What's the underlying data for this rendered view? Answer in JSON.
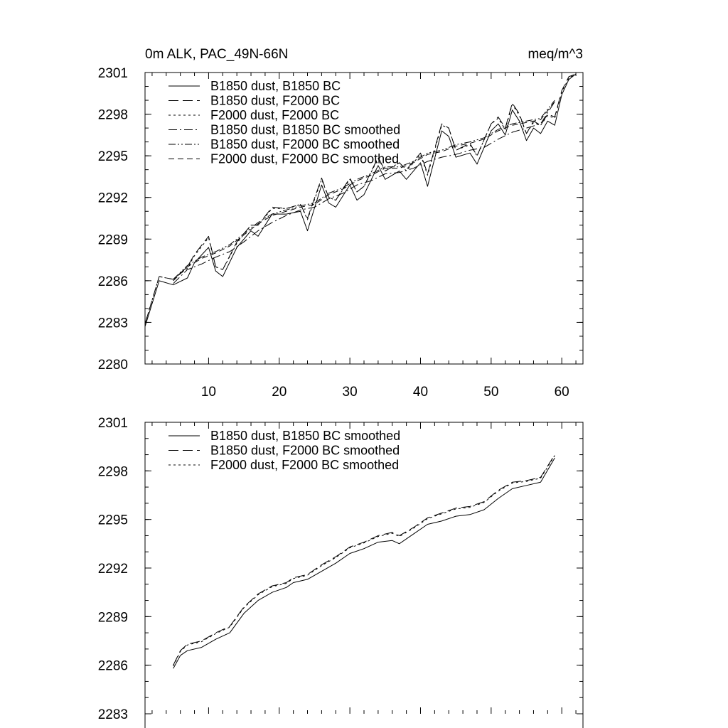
{
  "chart_data": [
    {
      "type": "line",
      "title_left": "0m ALK, PAC_49N-66N",
      "title_right": "meq/m^3",
      "xlim": [
        1,
        63
      ],
      "ylim": [
        2280,
        2301
      ],
      "xticks": [
        10,
        20,
        30,
        40,
        50,
        60
      ],
      "xtick_labels": [
        "10",
        "20",
        "30",
        "40",
        "50",
        "60"
      ],
      "yticks": [
        2280,
        2283,
        2286,
        2289,
        2292,
        2295,
        2298,
        2301
      ],
      "ytick_labels": [
        "2280",
        "2283",
        "2286",
        "2289",
        "2292",
        "2295",
        "2298",
        "2301"
      ],
      "grid": false,
      "legend_position": "top-left",
      "series": [
        {
          "name": "B1850 dust, B1850 BC",
          "dash": "solid",
          "x": [
            1,
            3,
            5,
            7,
            8,
            10,
            11,
            12,
            14,
            16,
            17,
            19,
            21,
            23,
            24,
            26,
            27,
            28,
            30,
            31,
            32,
            34,
            35,
            37,
            38,
            40,
            41,
            43,
            44,
            45,
            47,
            48,
            50,
            51,
            52,
            53,
            54,
            55,
            56,
            57,
            58,
            59,
            60,
            61,
            62
          ],
          "values": [
            2282.7,
            2286.0,
            2285.7,
            2286.2,
            2287.3,
            2288.4,
            2286.7,
            2286.3,
            2288.4,
            2289.6,
            2289.2,
            2290.8,
            2290.8,
            2291.0,
            2289.6,
            2292.9,
            2291.6,
            2291.3,
            2292.9,
            2291.8,
            2292.2,
            2294.3,
            2293.3,
            2293.9,
            2293.3,
            2294.5,
            2292.8,
            2296.8,
            2296.4,
            2294.9,
            2295.2,
            2294.4,
            2296.8,
            2297.3,
            2296.5,
            2298.3,
            2297.5,
            2296.1,
            2297.0,
            2296.6,
            2297.5,
            2297.2,
            2299.4,
            2300.5,
            2300.9
          ]
        },
        {
          "name": "B1850 dust, F2000 BC",
          "dash": "long-dash",
          "x": [
            1,
            3,
            5,
            7,
            8,
            10,
            11,
            12,
            14,
            16,
            17,
            19,
            21,
            23,
            24,
            26,
            27,
            28,
            30,
            31,
            32,
            34,
            35,
            37,
            38,
            40,
            41,
            43,
            44,
            45,
            47,
            48,
            50,
            51,
            52,
            53,
            54,
            55,
            56,
            57,
            58,
            59,
            60,
            61,
            62
          ],
          "values": [
            2282.9,
            2286.3,
            2286.1,
            2287.0,
            2287.9,
            2289.2,
            2287.0,
            2286.8,
            2288.8,
            2290.0,
            2290.0,
            2291.3,
            2291.2,
            2291.5,
            2290.5,
            2293.4,
            2292.0,
            2291.8,
            2293.4,
            2292.4,
            2292.8,
            2294.9,
            2293.9,
            2294.5,
            2294.0,
            2295.2,
            2293.7,
            2297.3,
            2297.0,
            2295.4,
            2295.9,
            2295.0,
            2297.3,
            2297.8,
            2297.0,
            2298.8,
            2298.0,
            2296.6,
            2297.5,
            2297.2,
            2298.0,
            2297.8,
            2299.7,
            2300.7,
            2300.9
          ]
        },
        {
          "name": "F2000 dust, F2000 BC",
          "dash": "short-dash",
          "x": [
            1,
            3,
            5,
            7,
            8,
            10,
            11,
            12,
            14,
            16,
            17,
            19,
            21,
            23,
            24,
            26,
            27,
            28,
            30,
            31,
            32,
            34,
            35,
            37,
            38,
            40,
            41,
            43,
            44,
            45,
            47,
            48,
            50,
            51,
            52,
            53,
            54,
            55,
            56,
            57,
            58,
            59,
            60,
            61,
            62
          ],
          "values": [
            2282.9,
            2286.3,
            2286.1,
            2286.9,
            2287.8,
            2289.1,
            2287.0,
            2286.8,
            2288.7,
            2290.0,
            2290.0,
            2291.2,
            2291.2,
            2291.5,
            2290.4,
            2293.3,
            2292.0,
            2291.8,
            2293.3,
            2292.4,
            2292.8,
            2294.8,
            2293.9,
            2294.5,
            2293.9,
            2295.1,
            2293.6,
            2297.2,
            2297.0,
            2295.4,
            2295.8,
            2295.0,
            2297.3,
            2297.7,
            2296.9,
            2298.7,
            2297.9,
            2296.6,
            2297.4,
            2297.2,
            2297.9,
            2297.7,
            2299.6,
            2300.6,
            2300.9
          ]
        },
        {
          "name": "B1850 dust, B1850 BC smoothed",
          "dash": "dash-dot",
          "x": [
            5,
            7,
            9,
            11,
            13,
            15,
            17,
            19,
            21,
            23,
            25,
            27,
            29,
            31,
            33,
            35,
            37,
            39,
            41,
            43,
            45,
            47,
            49,
            51,
            53,
            55,
            57,
            59
          ],
          "values": [
            2285.8,
            2286.8,
            2287.2,
            2287.7,
            2288.1,
            2288.8,
            2289.6,
            2290.2,
            2290.7,
            2291.1,
            2291.3,
            2291.9,
            2292.3,
            2292.9,
            2293.2,
            2293.7,
            2293.8,
            2294.1,
            2294.6,
            2294.9,
            2295.1,
            2295.4,
            2295.6,
            2296.2,
            2296.7,
            2297.0,
            2297.3,
            2298.9
          ]
        },
        {
          "name": "B1850 dust, F2000 BC smoothed",
          "dash": "dash-dot-dot",
          "x": [
            5,
            7,
            9,
            11,
            13,
            15,
            17,
            19,
            21,
            23,
            25,
            27,
            29,
            31,
            33,
            35,
            37,
            39,
            41,
            43,
            45,
            47,
            49,
            51,
            53,
            55,
            57,
            59
          ],
          "values": [
            2286.1,
            2287.1,
            2287.7,
            2288.1,
            2288.6,
            2289.4,
            2290.2,
            2290.8,
            2291.1,
            2291.4,
            2291.6,
            2292.3,
            2292.7,
            2293.3,
            2293.7,
            2294.2,
            2294.2,
            2294.6,
            2295.2,
            2295.4,
            2295.8,
            2296.0,
            2296.3,
            2296.9,
            2297.3,
            2297.5,
            2297.7,
            2299.0
          ]
        },
        {
          "name": "F2000 dust, F2000 BC smoothed",
          "dash": "medium-dash",
          "x": [
            5,
            7,
            9,
            11,
            13,
            15,
            17,
            19,
            21,
            23,
            25,
            27,
            29,
            31,
            33,
            35,
            37,
            39,
            41,
            43,
            45,
            47,
            49,
            51,
            53,
            55,
            57,
            59
          ],
          "values": [
            2286.0,
            2287.0,
            2287.6,
            2288.0,
            2288.5,
            2289.3,
            2290.1,
            2290.7,
            2291.0,
            2291.3,
            2291.5,
            2292.2,
            2292.6,
            2293.2,
            2293.6,
            2294.1,
            2294.1,
            2294.5,
            2295.1,
            2295.3,
            2295.7,
            2295.9,
            2296.2,
            2296.8,
            2297.2,
            2297.4,
            2297.6,
            2298.9
          ]
        }
      ]
    },
    {
      "type": "line",
      "xlim": [
        1,
        63
      ],
      "ylim": [
        2283,
        2301
      ],
      "xticks": [
        10,
        20,
        30,
        40,
        50,
        60
      ],
      "yticks": [
        2283,
        2286,
        2289,
        2292,
        2295,
        2298,
        2301
      ],
      "ytick_labels": [
        "2283",
        "2286",
        "2289",
        "2292",
        "2295",
        "2298",
        "2301"
      ],
      "grid": false,
      "legend_position": "top-left",
      "series": [
        {
          "name": "B1850 dust, B1850 BC smoothed",
          "dash": "solid",
          "x": [
            5,
            6,
            7,
            9,
            11,
            13,
            15,
            17,
            19,
            21,
            22,
            24,
            26,
            28,
            30,
            32,
            34,
            36,
            37,
            39,
            41,
            43,
            45,
            47,
            49,
            51,
            53,
            55,
            57,
            59
          ],
          "values": [
            2285.8,
            2286.6,
            2286.9,
            2287.1,
            2287.6,
            2288.0,
            2289.2,
            2290.0,
            2290.5,
            2290.8,
            2291.1,
            2291.3,
            2291.8,
            2292.3,
            2292.9,
            2293.2,
            2293.6,
            2293.7,
            2293.5,
            2294.1,
            2294.7,
            2294.9,
            2295.2,
            2295.3,
            2295.6,
            2296.3,
            2296.9,
            2297.1,
            2297.3,
            2298.8
          ]
        },
        {
          "name": "B1850 dust, F2000 BC smoothed",
          "dash": "long-dash",
          "x": [
            5,
            6,
            7,
            9,
            11,
            13,
            15,
            17,
            19,
            21,
            22,
            24,
            26,
            28,
            30,
            32,
            34,
            36,
            37,
            39,
            41,
            43,
            45,
            47,
            49,
            51,
            53,
            55,
            57,
            59
          ],
          "values": [
            2286.0,
            2286.9,
            2287.3,
            2287.5,
            2288.0,
            2288.4,
            2289.6,
            2290.4,
            2290.9,
            2291.1,
            2291.4,
            2291.6,
            2292.2,
            2292.7,
            2293.3,
            2293.6,
            2294.0,
            2294.2,
            2294.0,
            2294.5,
            2295.1,
            2295.4,
            2295.7,
            2295.8,
            2296.1,
            2296.8,
            2297.3,
            2297.4,
            2297.6,
            2299.0
          ]
        },
        {
          "name": "F2000 dust, F2000 BC smoothed",
          "dash": "short-dash",
          "x": [
            5,
            6,
            7,
            9,
            11,
            13,
            15,
            17,
            19,
            21,
            22,
            24,
            26,
            28,
            30,
            32,
            34,
            36,
            37,
            39,
            41,
            43,
            45,
            47,
            49,
            51,
            53,
            55,
            57,
            59
          ],
          "values": [
            2285.95,
            2286.85,
            2287.25,
            2287.45,
            2287.95,
            2288.35,
            2289.55,
            2290.35,
            2290.85,
            2291.05,
            2291.35,
            2291.55,
            2292.15,
            2292.65,
            2293.25,
            2293.55,
            2293.95,
            2294.15,
            2293.95,
            2294.45,
            2295.05,
            2295.35,
            2295.65,
            2295.75,
            2296.05,
            2296.75,
            2297.25,
            2297.35,
            2297.55,
            2298.95
          ]
        }
      ]
    }
  ]
}
